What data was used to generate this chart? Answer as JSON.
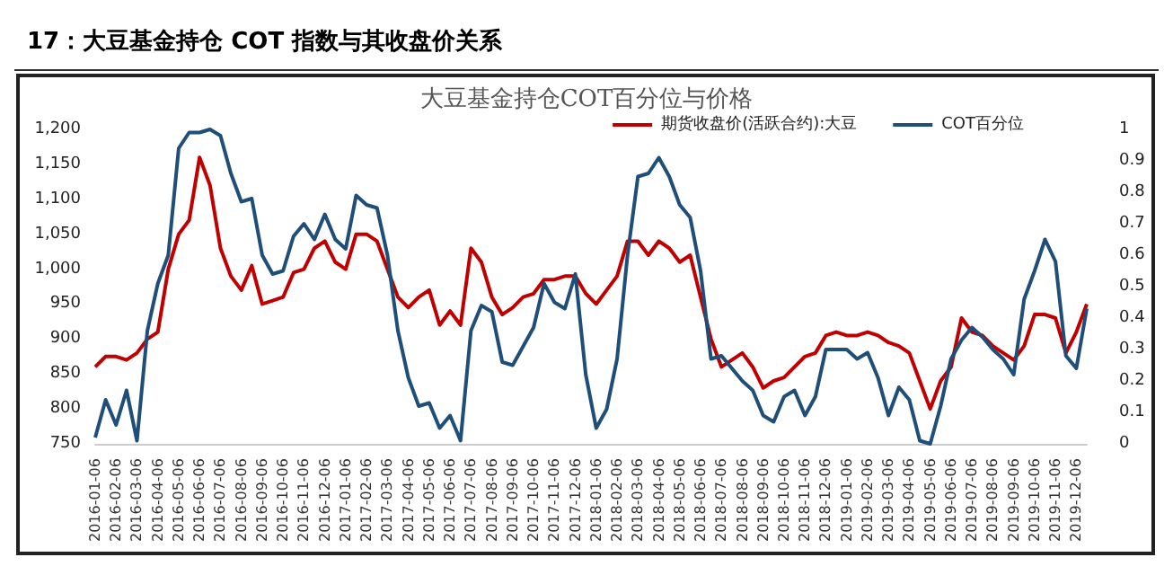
{
  "chart_data": {
    "type": "line",
    "title": "17：大豆基金持仓 COT 指数与其收盘价关系",
    "subtitle": "大豆基金持仓COT百分位与价格",
    "categories": [
      "2016-01-06",
      null,
      "2016-02-06",
      null,
      "2016-03-06",
      null,
      "2016-04-06",
      null,
      "2016-05-06",
      null,
      "2016-06-06",
      null,
      "2016-07-06",
      null,
      "2016-08-06",
      null,
      "2016-09-06",
      null,
      "2016-10-06",
      null,
      "2016-11-06",
      null,
      "2016-12-06",
      null,
      "2017-01-06",
      null,
      "2017-02-06",
      null,
      "2017-03-06",
      null,
      "2017-04-06",
      null,
      "2017-05-06",
      null,
      "2017-06-06",
      null,
      "2017-07-06",
      null,
      "2017-08-06",
      null,
      "2017-09-06",
      null,
      "2017-10-06",
      null,
      "2017-11-06",
      null,
      "2017-12-06",
      null,
      "2018-01-06",
      null,
      "2018-02-06",
      null,
      "2018-03-06",
      null,
      "2018-04-06",
      null,
      "2018-05-06",
      null,
      "2018-06-06",
      null,
      "2018-07-06",
      null,
      "2018-08-06",
      null,
      "2018-09-06",
      null,
      "2018-10-06",
      null,
      "2018-11-06",
      null,
      "2018-12-06",
      null,
      "2019-01-06",
      null,
      "2019-02-06",
      null,
      "2019-03-06",
      null,
      "2019-04-06",
      null,
      "2019-05-06",
      null,
      "2019-06-06",
      null,
      "2019-07-06",
      null,
      "2019-08-06",
      null,
      "2019-09-06",
      null,
      "2019-10-06",
      null,
      "2019-11-06",
      null,
      "2019-12-06",
      null
    ],
    "series": [
      {
        "name": "期货收盘价(活跃合约):大豆",
        "color": "#c00000",
        "values": [
          860,
          875,
          875,
          870,
          880,
          900,
          910,
          1000,
          1050,
          1070,
          1160,
          1120,
          1030,
          990,
          970,
          1005,
          950,
          955,
          960,
          995,
          1000,
          1030,
          1040,
          1010,
          1000,
          1050,
          1050,
          1040,
          1000,
          960,
          945,
          960,
          970,
          920,
          940,
          920,
          1030,
          1010,
          960,
          935,
          945,
          960,
          965,
          985,
          985,
          990,
          990,
          965,
          950,
          970,
          990,
          1040,
          1040,
          1020,
          1040,
          1030,
          1010,
          1020,
          960,
          900,
          860,
          870,
          880,
          860,
          830,
          840,
          845,
          860,
          875,
          880,
          905,
          910,
          905,
          905,
          910,
          905,
          895,
          890,
          880,
          840,
          800,
          840,
          860,
          930,
          910,
          905,
          890,
          880,
          870,
          890,
          935,
          935,
          930,
          880,
          910,
          950
        ]
      },
      {
        "name": "COT百分位",
        "color": "#1f4e79",
        "axis": "y2",
        "values": [
          0.02,
          0.14,
          0.06,
          0.17,
          0.01,
          0.36,
          0.51,
          0.6,
          0.94,
          0.99,
          0.99,
          1,
          0.98,
          0.86,
          0.77,
          0.78,
          0.6,
          0.54,
          0.55,
          0.66,
          0.7,
          0.65,
          0.73,
          0.65,
          0.62,
          0.79,
          0.76,
          0.75,
          0.6,
          0.36,
          0.21,
          0.12,
          0.13,
          0.05,
          0.09,
          0.01,
          0.36,
          0.44,
          0.42,
          0.26,
          0.25,
          0.31,
          0.37,
          0.51,
          0.45,
          0.43,
          0.54,
          0.22,
          0.05,
          0.11,
          0.27,
          0.6,
          0.85,
          0.86,
          0.91,
          0.85,
          0.76,
          0.72,
          0.55,
          0.27,
          0.28,
          0.24,
          0.2,
          0.17,
          0.09,
          0.07,
          0.15,
          0.17,
          0.09,
          0.15,
          0.3,
          0.3,
          0.3,
          0.27,
          0.29,
          0.21,
          0.09,
          0.18,
          0.14,
          0.01,
          0,
          0.12,
          0.27,
          0.33,
          0.37,
          0.34,
          0.3,
          0.27,
          0.22,
          0.46,
          0.55,
          0.65,
          0.58,
          0.28,
          0.24,
          0.43
        ]
      }
    ],
    "ylim": [
      750,
      1200
    ],
    "yticks": [
      750,
      800,
      850,
      900,
      950,
      {
        "value": 1000,
        "label": "1,000"
      },
      {
        "value": 1050,
        "label": "1,050"
      },
      {
        "value": 1100,
        "label": "1,100"
      },
      {
        "value": 1150,
        "label": "1,150"
      },
      {
        "value": 1200,
        "label": "1,200"
      }
    ],
    "y2lim": [
      0,
      1
    ],
    "y2ticks": [
      0,
      0.1,
      0.2,
      0.3,
      0.4,
      0.5,
      0.6,
      0.7,
      0.8,
      0.9,
      1
    ],
    "grid": false,
    "legend": "top right",
    "marker": "none",
    "line_style": "solid"
  }
}
